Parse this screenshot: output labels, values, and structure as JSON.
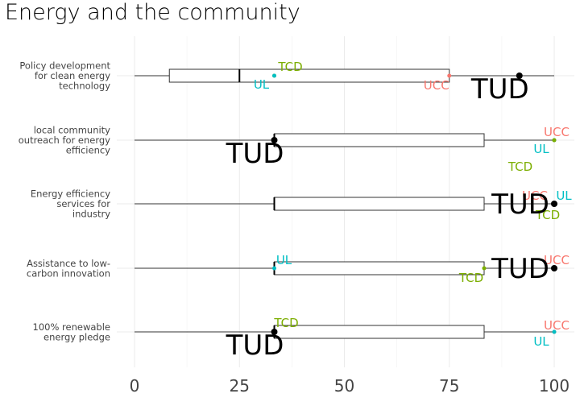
{
  "chart_data": {
    "type": "boxplot",
    "title": "Energy and the community",
    "xlabel": "",
    "ylabel": "",
    "xlim": [
      0,
      100
    ],
    "x_ticks": [
      "0",
      "25",
      "50",
      "75",
      "100"
    ],
    "grid": true,
    "legend": "none",
    "categories": [
      {
        "label": [
          "Policy development",
          "for clean energy",
          "technology"
        ],
        "box": {
          "min": 0,
          "q1": 8.3,
          "median": 25,
          "q3": 75,
          "max": 100
        },
        "points": [
          {
            "name": "TCD",
            "value": 33.3,
            "color": "#7CAE00"
          },
          {
            "name": "UL",
            "value": 33.3,
            "color": "#00BFC4"
          },
          {
            "name": "UCC",
            "value": 75,
            "color": "#F8766D"
          },
          {
            "name": "TUD",
            "value": 91.7,
            "color": "#000000"
          }
        ]
      },
      {
        "label": [
          "local community",
          "outreach for energy",
          "efficiency"
        ],
        "box": {
          "min": 0,
          "q1": 33.3,
          "median": 33.3,
          "q3": 83.3,
          "max": 100
        },
        "points": [
          {
            "name": "TUD",
            "value": 33.3,
            "color": "#000000"
          },
          {
            "name": "UCC",
            "value": 100,
            "color": "#F8766D"
          },
          {
            "name": "UL",
            "value": 100,
            "color": "#00BFC4"
          },
          {
            "name": "TCD",
            "value": 100,
            "color": "#7CAE00"
          }
        ]
      },
      {
        "label": [
          "Energy efficiency",
          "services for",
          "industry"
        ],
        "box": {
          "min": 0,
          "q1": 33.3,
          "median": 33.3,
          "q3": 83.3,
          "max": 100
        },
        "points": [
          {
            "name": "UCC",
            "value": 100,
            "color": "#F8766D"
          },
          {
            "name": "UL",
            "value": 100,
            "color": "#00BFC4"
          },
          {
            "name": "TCD",
            "value": 100,
            "color": "#7CAE00"
          },
          {
            "name": "TUD",
            "value": 100,
            "color": "#000000"
          }
        ]
      },
      {
        "label": [
          "Assistance to low-",
          "carbon innovation"
        ],
        "box": {
          "min": 0,
          "q1": 33.3,
          "median": 33.3,
          "q3": 83.3,
          "max": 100
        },
        "points": [
          {
            "name": "UL",
            "value": 33.3,
            "color": "#00BFC4"
          },
          {
            "name": "TCD",
            "value": 83.3,
            "color": "#7CAE00"
          },
          {
            "name": "UCC",
            "value": 100,
            "color": "#F8766D"
          },
          {
            "name": "TUD",
            "value": 100,
            "color": "#000000"
          }
        ]
      },
      {
        "label": [
          "100% renewable",
          "energy pledge"
        ],
        "box": {
          "min": 0,
          "q1": 33.3,
          "median": 33.3,
          "q3": 83.3,
          "max": 100
        },
        "points": [
          {
            "name": "TCD",
            "value": 33.3,
            "color": "#7CAE00"
          },
          {
            "name": "TUD",
            "value": 33.3,
            "color": "#000000"
          },
          {
            "name": "UCC",
            "value": 100,
            "color": "#F8766D"
          },
          {
            "name": "UL",
            "value": 100,
            "color": "#00BFC4"
          }
        ]
      }
    ]
  }
}
